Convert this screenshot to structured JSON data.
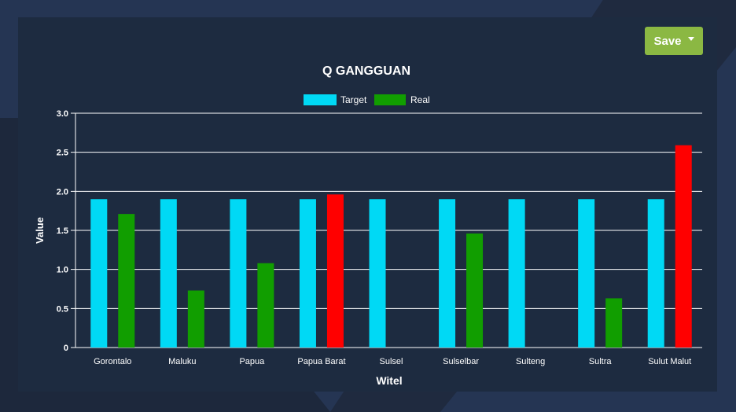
{
  "toolbar": {
    "save_label": "Save",
    "save_color": "#8bb843"
  },
  "chart_data": {
    "type": "bar",
    "title": "Q GANGGUAN",
    "xlabel": "Witel",
    "ylabel": "Value",
    "ylim": [
      0,
      3.0
    ],
    "yticks": [
      "0",
      "0.5",
      "1.0",
      "1.5",
      "2.0",
      "2.5",
      "3.0"
    ],
    "grid": true,
    "legend_position": "top-center",
    "categories": [
      "Gorontalo",
      "Maluku",
      "Papua",
      "Papua Barat",
      "Sulsel",
      "Sulselbar",
      "Sulteng",
      "Sultra",
      "Sulut Malut"
    ],
    "series": [
      {
        "name": "Target",
        "color": "#00d9f5",
        "values": [
          1.9,
          1.9,
          1.9,
          1.9,
          1.9,
          1.9,
          1.9,
          1.9,
          1.9
        ]
      },
      {
        "name": "Real",
        "color": "#119e00",
        "values": [
          1.71,
          0.73,
          1.08,
          1.96,
          0,
          1.46,
          0,
          0.63,
          2.59
        ],
        "point_colors": [
          "#119e00",
          "#119e00",
          "#119e00",
          "#ff0000",
          "#119e00",
          "#119e00",
          "#119e00",
          "#119e00",
          "#ff0000"
        ]
      }
    ]
  }
}
